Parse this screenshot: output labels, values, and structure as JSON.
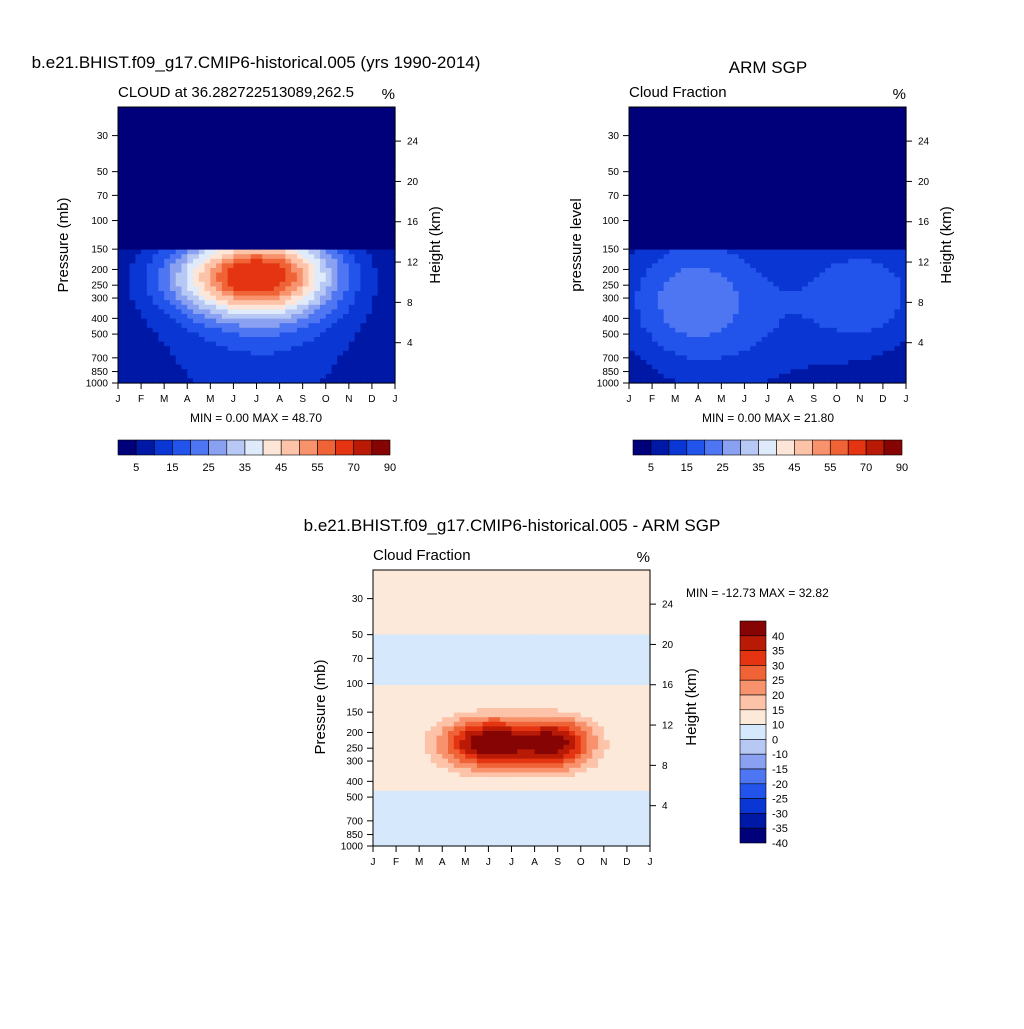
{
  "months": [
    "J",
    "F",
    "M",
    "A",
    "M",
    "J",
    "J",
    "A",
    "S",
    "O",
    "N",
    "D",
    "J"
  ],
  "pressure_ticks": [
    30,
    50,
    70,
    100,
    150,
    200,
    250,
    300,
    400,
    500,
    700,
    850,
    1000
  ],
  "height_ticks": [
    24,
    20,
    16,
    12,
    8,
    4
  ],
  "colors": {
    "abs_scale": [
      "#00007a",
      "#0018a6",
      "#0a36d4",
      "#2254ec",
      "#4f76f2",
      "#8aa0f0",
      "#b8c8f4",
      "#dfeafa",
      "#fde6d8",
      "#fcc3a9",
      "#f7926d",
      "#ef6336",
      "#e43412",
      "#b81a06",
      "#860404"
    ],
    "diff_scale": [
      "#00007a",
      "#0018a6",
      "#0a36d4",
      "#2254ec",
      "#4f76f2",
      "#8aa0f0",
      "#b8c8f4",
      "#d6e8fb",
      "#fde9d9",
      "#fcc3a9",
      "#f7926d",
      "#ef6336",
      "#e43412",
      "#b81a06",
      "#860404"
    ]
  },
  "chart_data": [
    {
      "id": "model",
      "type": "heatmap",
      "main_title": "b.e21.BHIST.f09_g17.CMIP6-historical.005 (yrs 1990-2014)",
      "left_string": "CLOUD at 36.282722513089,262.5",
      "right_string": "%",
      "ylabel": "Pressure (mb)",
      "ylabel_right": "Height (km)",
      "min_max": "MIN =   0.00 MAX =  48.70",
      "ylim": [
        1000,
        20
      ],
      "colorbar_labels": [
        "5",
        "15",
        "25",
        "35",
        "45",
        "55",
        "70",
        "90"
      ],
      "blobs": [
        {
          "month": 5.5,
          "p": 220,
          "amp": 48.7,
          "sx": 3.2,
          "sy": 0.55
        },
        {
          "month": 7.5,
          "p": 200,
          "amp": 14,
          "sx": 2.5,
          "sy": 0.7
        },
        {
          "month": 6.0,
          "p": 500,
          "amp": 10,
          "sx": 5.0,
          "sy": 1.4
        }
      ],
      "base": 4
    },
    {
      "id": "obs",
      "type": "heatmap",
      "main_title": "ARM SGP",
      "left_string": "Cloud Fraction",
      "right_string": "%",
      "ylabel": "pressure level",
      "ylabel_right": "Height (km)",
      "min_max": "MIN =   0.00 MAX =  21.80",
      "ylim": [
        1000,
        20
      ],
      "colorbar_labels": [
        "5",
        "15",
        "25",
        "35",
        "45",
        "55",
        "70",
        "90"
      ],
      "blobs": [
        {
          "month": 2.5,
          "p": 300,
          "amp": 14,
          "sx": 3.0,
          "sy": 0.9
        },
        {
          "month": 10.5,
          "p": 280,
          "amp": 13,
          "sx": 3.0,
          "sy": 0.9
        },
        {
          "month": 5.0,
          "p": 400,
          "amp": 9,
          "sx": 5.0,
          "sy": 1.5
        }
      ],
      "base": 3
    },
    {
      "id": "diff",
      "type": "heatmap",
      "main_title": "b.e21.BHIST.f09_g17.CMIP6-historical.005 - ARM SGP",
      "left_string": "Cloud Fraction",
      "right_string": "%",
      "ylabel": "Pressure (mb)",
      "ylabel_right": "Height (km)",
      "min_max": "MIN = -12.73 MAX =  32.82",
      "ylim": [
        1000,
        20
      ],
      "colorbar_labels": [
        "40",
        "35",
        "30",
        "25",
        "20",
        "15",
        "10",
        "0",
        "-10",
        "-15",
        "-20",
        "-25",
        "-30",
        "-35",
        "-40"
      ],
      "blobs": [
        {
          "month": 5.0,
          "p": 230,
          "amp": 30,
          "sx": 2.0,
          "sy": 0.35
        },
        {
          "month": 8.0,
          "p": 230,
          "amp": 25,
          "sx": 1.5,
          "sy": 0.35
        },
        {
          "month": 6.5,
          "p": 250,
          "amp": 12,
          "sx": 5.0,
          "sy": 0.6
        }
      ],
      "base": 0
    }
  ]
}
